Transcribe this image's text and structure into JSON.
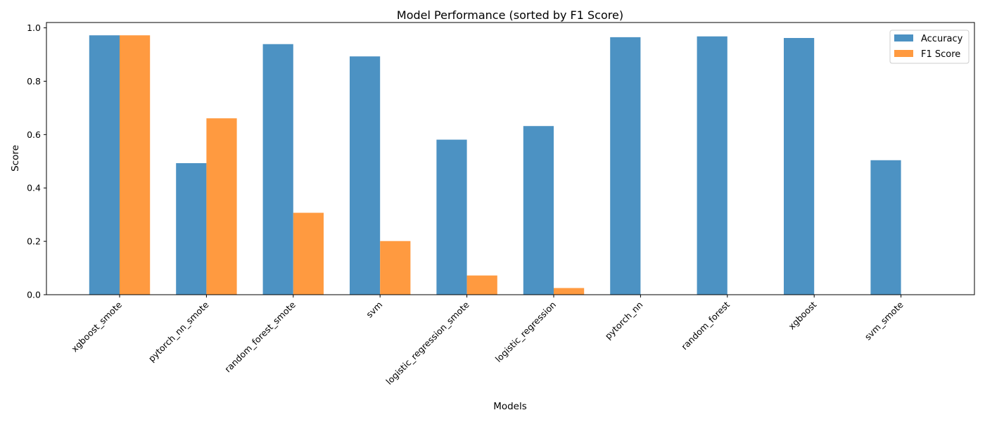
{
  "chart_data": {
    "type": "bar",
    "title": "Model Performance (sorted by F1 Score)",
    "xlabel": "Models",
    "ylabel": "Score",
    "ylim": [
      0,
      1.02
    ],
    "yticks": [
      "0.0",
      "0.2",
      "0.4",
      "0.6",
      "0.8",
      "1.0"
    ],
    "grid": false,
    "legend_position": "top-right",
    "categories": [
      "xgboost_smote",
      "pytorch_nn_smote",
      "random_forest_smote",
      "svm",
      "logistic_regression_smote",
      "logistic_regression",
      "pytorch_nn",
      "random_forest",
      "xgboost",
      "svm_smote"
    ],
    "series": [
      {
        "name": "Accuracy",
        "color": "#4c92c3",
        "values": [
          0.972,
          0.493,
          0.939,
          0.893,
          0.581,
          0.632,
          0.965,
          0.968,
          0.962,
          0.504
        ]
      },
      {
        "name": "F1 Score",
        "color": "#ff9a40",
        "values": [
          0.972,
          0.661,
          0.307,
          0.201,
          0.072,
          0.025,
          0.0,
          0.0,
          0.0,
          0.0
        ]
      }
    ]
  }
}
